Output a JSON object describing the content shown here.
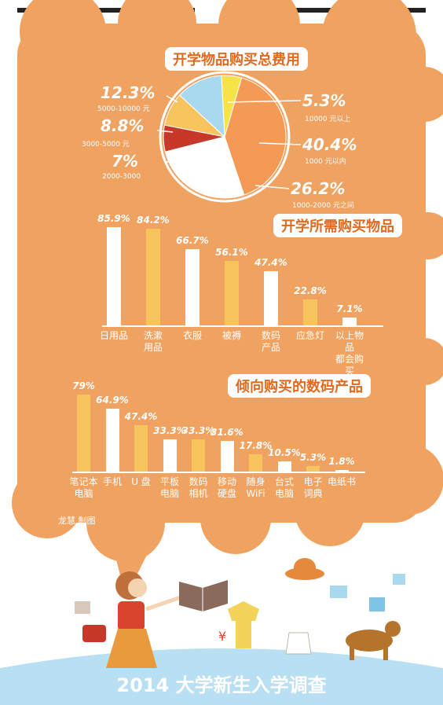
{
  "pie": {
    "title": "开学物品购买总费用",
    "chart_data": {
      "type": "pie",
      "slices": [
        {
          "label": "10000 元以上",
          "value": 5.3,
          "pct_text": "5.3%",
          "color": "#f7e24a"
        },
        {
          "label": "1000 元以内",
          "value": 40.4,
          "pct_text": "40.4%",
          "color": "#f59a55"
        },
        {
          "label": "1000-2000 元之间",
          "value": 26.2,
          "pct_text": "26.2%",
          "color": "#ffffff"
        },
        {
          "label": "2000-3000",
          "value": 7,
          "pct_text": "7%",
          "color": "#c8382a"
        },
        {
          "label": "3000-5000 元",
          "value": 8.8,
          "pct_text": "8.8%",
          "color": "#f8c45e"
        },
        {
          "label": "5000-10000 元",
          "value": 12.3,
          "pct_text": "12.3%",
          "color": "#a9d9ee"
        }
      ]
    }
  },
  "bars1": {
    "title": "开学所需购买物品",
    "chart_data": {
      "type": "bar",
      "categories": [
        "日用品",
        "洗漱\n用品",
        "衣服",
        "被褥",
        "数码\n产品",
        "应急灯",
        "以上物品\n都会购买"
      ],
      "values": [
        85.9,
        84.2,
        66.7,
        56.1,
        47.4,
        22.8,
        7.1
      ],
      "value_labels": [
        "85.9%",
        "84.2%",
        "66.7%",
        "56.1%",
        "47.4%",
        "22.8%",
        "7.1%"
      ],
      "ylim": [
        0,
        100
      ],
      "colors": [
        "#ffffff",
        "#f8c45e",
        "#ffffff",
        "#f8c45e",
        "#ffffff",
        "#f8c45e",
        "#ffffff"
      ]
    }
  },
  "bars2": {
    "title": "倾向购买的数码产品",
    "chart_data": {
      "type": "bar",
      "categories": [
        "笔记本\n电脑",
        "手机",
        "U 盘",
        "平板\n电脑",
        "数码\n相机",
        "移动\n硬盘",
        "随身\nWiFi",
        "台式\n电脑",
        "电子\n词典",
        "电纸书"
      ],
      "values": [
        79,
        64.9,
        47.4,
        33.3,
        33.3,
        31.6,
        17.8,
        10.5,
        5.3,
        1.8
      ],
      "value_labels": [
        "79%",
        "64.9%",
        "47.4%",
        "33.3%",
        "33.3%",
        "31.6%",
        "17.8%",
        "10.5%",
        "5.3%",
        "1.8%"
      ],
      "ylim": [
        0,
        100
      ],
      "colors": [
        "#f8c45e",
        "#ffffff",
        "#f8c45e",
        "#ffffff",
        "#f8c45e",
        "#ffffff",
        "#f8c45e",
        "#ffffff",
        "#f8c45e",
        "#ffffff"
      ]
    }
  },
  "credit": "龙慧 制图",
  "banner": "2014 大学新生入学调查",
  "colors": {
    "cloud": "#f0a261",
    "ground": "#b9dff3"
  }
}
